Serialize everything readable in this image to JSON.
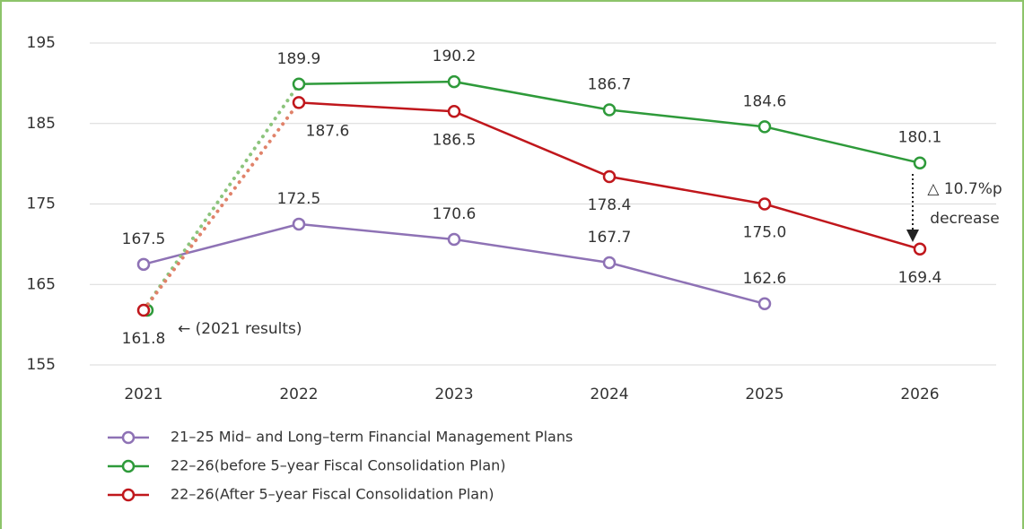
{
  "chart_data": {
    "type": "line",
    "categories": [
      "2021",
      "2022",
      "2023",
      "2024",
      "2025",
      "2026"
    ],
    "ylim": [
      155,
      195
    ],
    "yticks": [
      155,
      165,
      175,
      185,
      195
    ],
    "grid": true,
    "series": [
      {
        "name": "21–25 Mid– and Long–term Financial Management Plans",
        "color": "#8e72b5",
        "values": [
          167.5,
          172.5,
          170.6,
          167.7,
          162.6,
          null
        ],
        "value_labels": [
          "167.5",
          "172.5",
          "170.6",
          "167.7",
          "162.6",
          null
        ],
        "label_position": "above"
      },
      {
        "name": "22–26(before 5–year Fiscal Consolidation Plan)",
        "color": "#2e9a3a",
        "values": [
          161.8,
          189.9,
          190.2,
          186.7,
          184.6,
          180.1
        ],
        "value_labels": [
          null,
          "189.9",
          "190.2",
          "186.7",
          "184.6",
          "180.1"
        ],
        "label_position": "above",
        "first_segment": {
          "style": "dotted",
          "color": "#8cc47c"
        }
      },
      {
        "name": "22–26(After 5–year Fiscal Consolidation Plan)",
        "color": "#c0171c",
        "values": [
          161.8,
          187.6,
          186.5,
          178.4,
          175.0,
          169.4
        ],
        "value_labels": [
          "161.8",
          "187.6",
          "186.5",
          "178.4",
          "175.0",
          "169.4"
        ],
        "label_position": "below",
        "first_segment": {
          "style": "dotted",
          "color": "#e0826a"
        }
      }
    ],
    "annotations": [
      "← (2021 results)",
      "△ 10.7%p",
      "decrease"
    ]
  }
}
